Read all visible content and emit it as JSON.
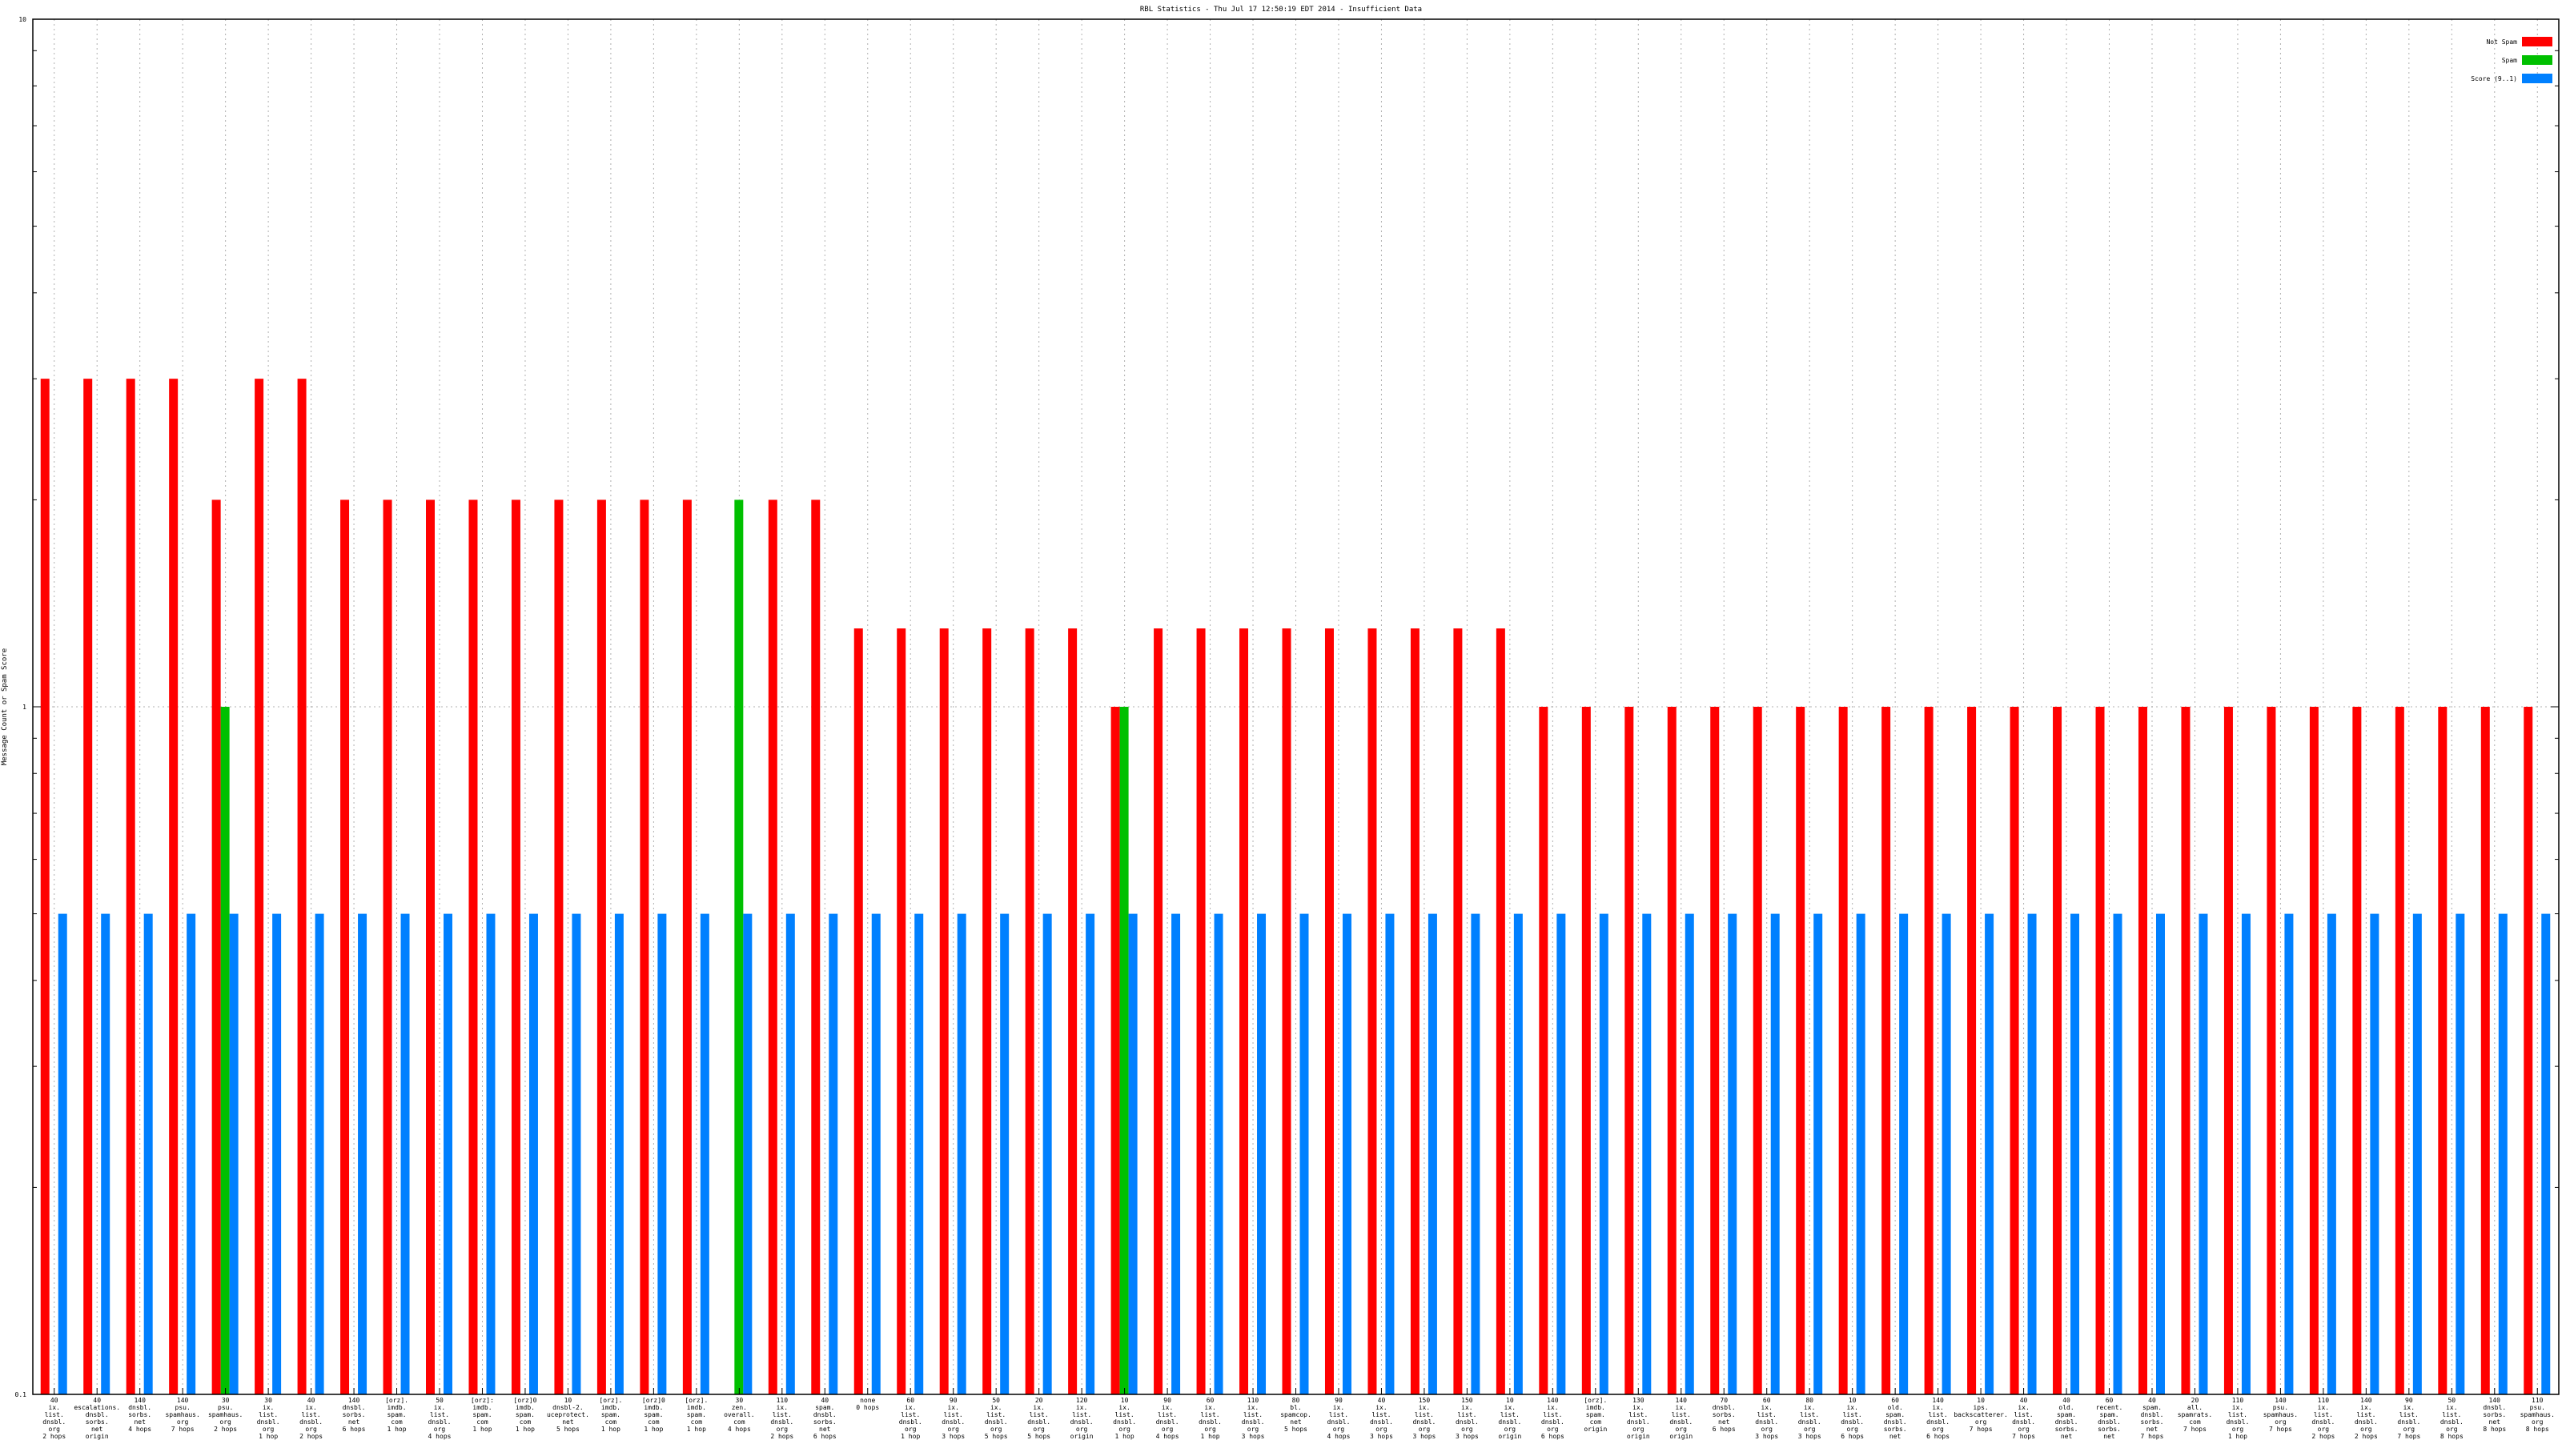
{
  "chart_data": {
    "type": "bar",
    "title": "RBL Statistics - Thu Jul 17 12:50:19 EDT 2014 - Insufficient Data",
    "xlabel": "",
    "ylabel": "Message Count or Spam Score",
    "yscale": "log",
    "ylim": [
      0.1,
      10
    ],
    "y_tick_labels": [
      {
        "value": 10,
        "label": "10"
      },
      {
        "value": 1,
        "label": "1"
      },
      {
        "value": 0.1,
        "label": "0.1"
      }
    ],
    "grid": true,
    "legend_position": "top-right",
    "categories": [
      [
        "40",
        "ix.",
        "list.",
        "dnsbl.",
        "org",
        "2 hops"
      ],
      [
        "40",
        "escalations.",
        "dnsbl.",
        "sorbs.",
        "net",
        "origin"
      ],
      [
        "140",
        "dnsbl.",
        "sorbs.",
        "net",
        "4 hops"
      ],
      [
        "140",
        "psu.",
        "spamhaus.",
        "org",
        "7 hops"
      ],
      [
        "30",
        "psu.",
        "spamhaus.",
        "org",
        "2 hops"
      ],
      [
        "30",
        "ix.",
        "list.",
        "dnsbl.",
        "org",
        "1 hop"
      ],
      [
        "40",
        "ix.",
        "list.",
        "dnsbl.",
        "org",
        "2 hops"
      ],
      [
        "140",
        "dnsbl.",
        "sorbs.",
        "net",
        "6 hops"
      ],
      [
        "[orz].",
        "imdb.",
        "spam.",
        "com",
        "1 hop"
      ],
      [
        "50",
        "ix.",
        "list.",
        "dnsbl.",
        "org",
        "4 hops"
      ],
      [
        "[orz]:",
        "imdb.",
        "spam.",
        "com",
        "1 hop"
      ],
      [
        "[orz]0",
        "imdb.",
        "spam.",
        "com",
        "1 hop"
      ],
      [
        "10",
        "dnsbl-2.",
        "uceprotect.",
        "net",
        "5 hops"
      ],
      [
        "[orz].",
        "imdb.",
        "spam.",
        "com",
        "1 hop"
      ],
      [
        "[orz]0",
        "imdb.",
        "spam.",
        "com",
        "1 hop"
      ],
      [
        "[orz].",
        "imdb.",
        "spam.",
        "com",
        "1 hop"
      ],
      [
        "30",
        "zen.",
        "overall.",
        "com",
        "4 hops"
      ],
      [
        "110",
        "ix.",
        "list.",
        "dnsbl.",
        "org",
        "2 hops"
      ],
      [
        "40",
        "spam.",
        "dnsbl.",
        "sorbs.",
        "net",
        "6 hops"
      ],
      [
        "none",
        "0 hops"
      ],
      [
        "60",
        "ix.",
        "list.",
        "dnsbl.",
        "org",
        "1 hop"
      ],
      [
        "90",
        "ix.",
        "list.",
        "dnsbl.",
        "org",
        "3 hops"
      ],
      [
        "50",
        "ix.",
        "list.",
        "dnsbl.",
        "org",
        "5 hops"
      ],
      [
        "20",
        "ix.",
        "list.",
        "dnsbl.",
        "org",
        "5 hops"
      ],
      [
        "120",
        "ix.",
        "list.",
        "dnsbl.",
        "org",
        "origin"
      ],
      [
        "10",
        "ix.",
        "list.",
        "dnsbl.",
        "org",
        "1 hop"
      ],
      [
        "90",
        "ix.",
        "list.",
        "dnsbl.",
        "org",
        "4 hops"
      ],
      [
        "60",
        "ix.",
        "list.",
        "dnsbl.",
        "org",
        "1 hop"
      ],
      [
        "110",
        "ix.",
        "list.",
        "dnsbl.",
        "org",
        "3 hops"
      ],
      [
        "80",
        "bl.",
        "spamcop.",
        "net",
        "5 hops"
      ],
      [
        "90",
        "ix.",
        "list.",
        "dnsbl.",
        "org",
        "4 hops"
      ],
      [
        "40",
        "ix.",
        "list.",
        "dnsbl.",
        "org",
        "3 hops"
      ],
      [
        "150",
        "ix.",
        "list.",
        "dnsbl.",
        "org",
        "3 hops"
      ],
      [
        "150",
        "ix.",
        "list.",
        "dnsbl.",
        "org",
        "3 hops"
      ],
      [
        "10",
        "ix.",
        "list.",
        "dnsbl.",
        "org",
        "origin"
      ],
      [
        "140",
        "ix.",
        "list.",
        "dnsbl.",
        "org",
        "6 hops"
      ],
      [
        "[orz].",
        "imdb.",
        "spam.",
        "com",
        "origin"
      ],
      [
        "130",
        "ix.",
        "list.",
        "dnsbl.",
        "org",
        "origin"
      ],
      [
        "140",
        "ix.",
        "list.",
        "dnsbl.",
        "org",
        "origin"
      ],
      [
        "70",
        "dnsbl.",
        "sorbs.",
        "net",
        "6 hops"
      ],
      [
        "60",
        "ix.",
        "list.",
        "dnsbl.",
        "org",
        "3 hops"
      ],
      [
        "80",
        "ix.",
        "list.",
        "dnsbl.",
        "org",
        "3 hops"
      ],
      [
        "10",
        "ix.",
        "list.",
        "dnsbl.",
        "org",
        "6 hops"
      ],
      [
        "60",
        "old.",
        "spam.",
        "dnsbl.",
        "sorbs.",
        "net",
        "6 hops"
      ],
      [
        "140",
        "ix.",
        "list.",
        "dnsbl.",
        "org",
        "6 hops"
      ],
      [
        "10",
        "ips.",
        "backscatterer.",
        "org",
        "7 hops"
      ],
      [
        "40",
        "ix.",
        "list.",
        "dnsbl.",
        "org",
        "7 hops"
      ],
      [
        "40",
        "old.",
        "spam.",
        "dnsbl.",
        "sorbs.",
        "net",
        "7 hops"
      ],
      [
        "60",
        "recent.",
        "spam.",
        "dnsbl.",
        "sorbs.",
        "net",
        "7 hops"
      ],
      [
        "40",
        "spam.",
        "dnsbl.",
        "sorbs.",
        "net",
        "7 hops"
      ],
      [
        "20",
        "all.",
        "spamrats.",
        "com",
        "7 hops"
      ],
      [
        "110",
        "ix.",
        "list.",
        "dnsbl.",
        "org",
        "1 hop"
      ],
      [
        "140",
        "psu.",
        "spamhaus.",
        "org",
        "7 hops"
      ],
      [
        "110",
        "ix.",
        "list.",
        "dnsbl.",
        "org",
        "2 hops"
      ],
      [
        "140",
        "ix.",
        "list.",
        "dnsbl.",
        "org",
        "2 hops"
      ],
      [
        "90",
        "ix.",
        "list.",
        "dnsbl.",
        "org",
        "7 hops"
      ],
      [
        "50",
        "ix.",
        "list.",
        "dnsbl.",
        "org",
        "8 hops"
      ],
      [
        "140",
        "dnsbl.",
        "sorbs.",
        "net",
        "8 hops"
      ],
      [
        "110",
        "psu.",
        "spamhaus.",
        "org",
        "8 hops"
      ]
    ],
    "series": [
      {
        "name": "Not Spam",
        "color": "#ff0000",
        "values": [
          3,
          3,
          3,
          3,
          2,
          3,
          3,
          2,
          2,
          2,
          2,
          2,
          2,
          2,
          2,
          2,
          0.1,
          2,
          2,
          1.3,
          1.3,
          1.3,
          1.3,
          1.3,
          1.3,
          1,
          1.3,
          1.3,
          1.3,
          1.3,
          1.3,
          1.3,
          1.3,
          1.3,
          1.3,
          1,
          1,
          1,
          1,
          1,
          1,
          1,
          1,
          1,
          1,
          1,
          1,
          1,
          1,
          1,
          1,
          1,
          1,
          1,
          1,
          1,
          1,
          1,
          1
        ]
      },
      {
        "name": "Spam",
        "color": "#00c000",
        "values": [
          0.1,
          0.1,
          0.1,
          0.1,
          1,
          0.1,
          0.1,
          0.1,
          0.1,
          0.1,
          0.1,
          0.1,
          0.1,
          0.1,
          0.1,
          0.1,
          2,
          0.1,
          0.1,
          0.1,
          0.1,
          0.1,
          0.1,
          0.1,
          0.1,
          1,
          0.1,
          0.1,
          0.1,
          0.1,
          0.1,
          0.1,
          0.1,
          0.1,
          0.1,
          0.1,
          0.1,
          0.1,
          0.1,
          0.1,
          0.1,
          0.1,
          0.1,
          0.1,
          0.1,
          0.1,
          0.1,
          0.1,
          0.1,
          0.1,
          0.1,
          0.1,
          0.1,
          0.1,
          0.1,
          0.1,
          0.1,
          0.1,
          0.1
        ]
      },
      {
        "name": "Score (9..1)",
        "color": "#0080ff",
        "values": [
          0.5,
          0.5,
          0.5,
          0.5,
          0.5,
          0.5,
          0.5,
          0.5,
          0.5,
          0.5,
          0.5,
          0.5,
          0.5,
          0.5,
          0.5,
          0.5,
          0.5,
          0.5,
          0.5,
          0.5,
          0.5,
          0.5,
          0.5,
          0.5,
          0.5,
          0.5,
          0.5,
          0.5,
          0.5,
          0.5,
          0.5,
          0.5,
          0.5,
          0.5,
          0.5,
          0.5,
          0.5,
          0.5,
          0.5,
          0.5,
          0.5,
          0.5,
          0.5,
          0.5,
          0.5,
          0.5,
          0.5,
          0.5,
          0.5,
          0.5,
          0.5,
          0.5,
          0.5,
          0.5,
          0.5,
          0.5,
          0.5,
          0.5,
          0.5
        ]
      }
    ]
  }
}
